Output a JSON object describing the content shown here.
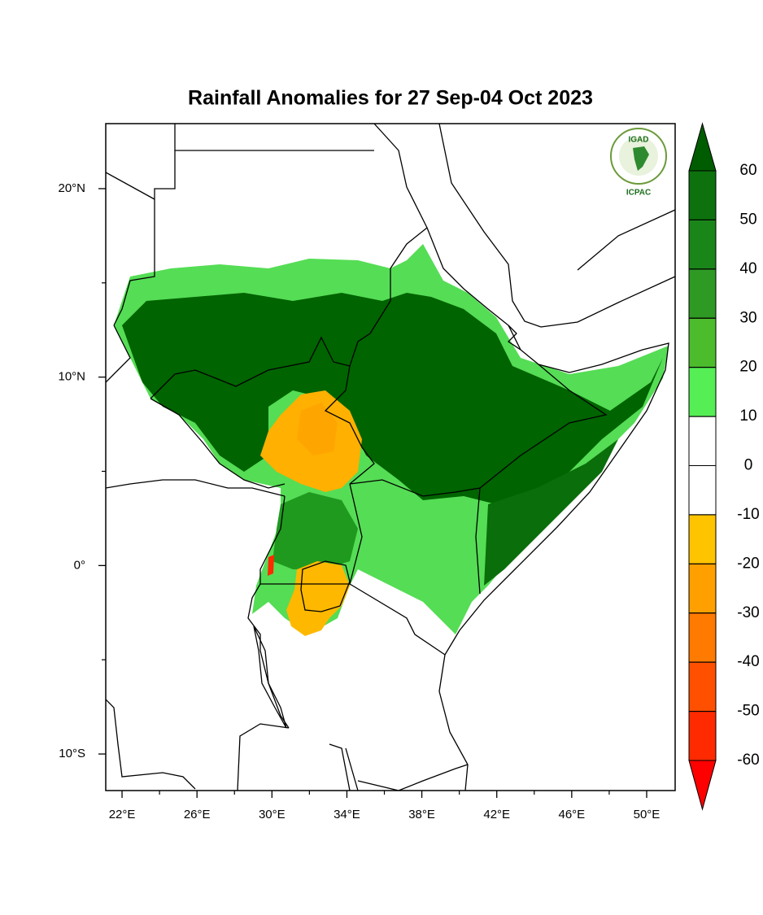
{
  "chart_data": {
    "type": "map",
    "title": "Rainfall Anomalies for 27 Sep-04 Oct 2023",
    "logo": {
      "name": "IGAD",
      "sub": "ICPAC"
    },
    "xlim": [
      21.13,
      51.52
    ],
    "ylim": [
      -11.94,
      23.45
    ],
    "xticks": [
      {
        "value": 22,
        "label": "22°E"
      },
      {
        "value": 26,
        "label": "26°E"
      },
      {
        "value": 30,
        "label": "30°E"
      },
      {
        "value": 34,
        "label": "34°E"
      },
      {
        "value": 38,
        "label": "38°E"
      },
      {
        "value": 42,
        "label": "42°E"
      },
      {
        "value": 46,
        "label": "46°E"
      },
      {
        "value": 50,
        "label": "50°E"
      }
    ],
    "xminor": [
      24,
      28,
      32,
      36,
      40,
      44,
      48
    ],
    "yticks": [
      {
        "value": 20,
        "label": "20°N"
      },
      {
        "value": 10,
        "label": "10°N"
      },
      {
        "value": 0,
        "label": "0°"
      },
      {
        "value": -10,
        "label": "10°S"
      }
    ],
    "yminor": [
      15,
      5,
      -5
    ],
    "colorbar": {
      "ticks": [
        60,
        50,
        40,
        30,
        20,
        10,
        0,
        -10,
        -20,
        -30,
        -40,
        -50,
        -60
      ],
      "colors": [
        "#005c00",
        "#0d720d",
        "#1a861a",
        "#2e9a24",
        "#4cbb2c",
        "#55ee55",
        "#ffffff",
        "#ffffff",
        "#ffc400",
        "#ffa000",
        "#ff7a00",
        "#ff5000",
        "#ff2a00",
        "#ff0000"
      ]
    }
  }
}
